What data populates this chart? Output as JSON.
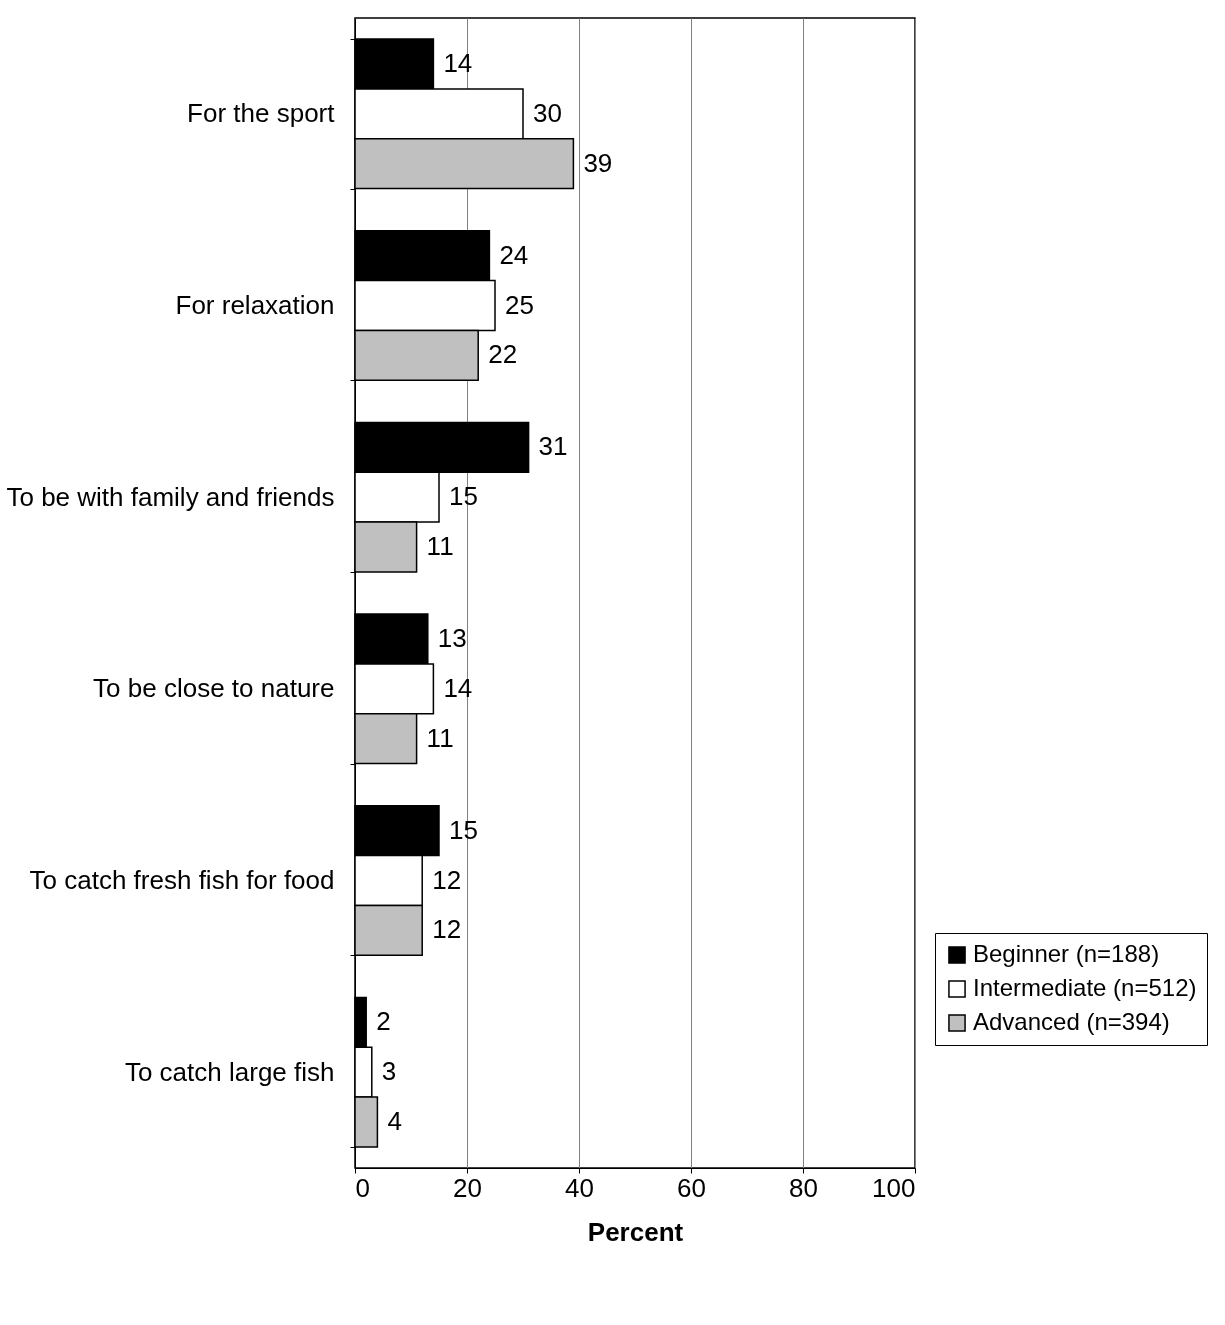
{
  "chart_data": {
    "type": "bar",
    "orientation": "horizontal",
    "xlabel": "Percent",
    "categories": [
      "For the sport",
      "For relaxation",
      "To be with family and friends",
      "To be close to nature",
      "To catch fresh fish for food",
      "To catch large fish"
    ],
    "series": [
      {
        "name": "Beginner (n=188)",
        "color": "#000000",
        "values": [
          14,
          24,
          31,
          13,
          15,
          2
        ]
      },
      {
        "name": "Intermediate (n=512)",
        "color": "#ffffff",
        "values": [
          30,
          25,
          15,
          14,
          12,
          3
        ]
      },
      {
        "name": "Advanced (n=394)",
        "color": "#c0c0c0",
        "values": [
          39,
          22,
          11,
          11,
          12,
          4
        ]
      }
    ],
    "xlim": [
      0,
      100
    ],
    "xticks": [
      0,
      20,
      40,
      60,
      80,
      100
    ],
    "grid": "x",
    "legend": "right",
    "data_labels": true
  }
}
